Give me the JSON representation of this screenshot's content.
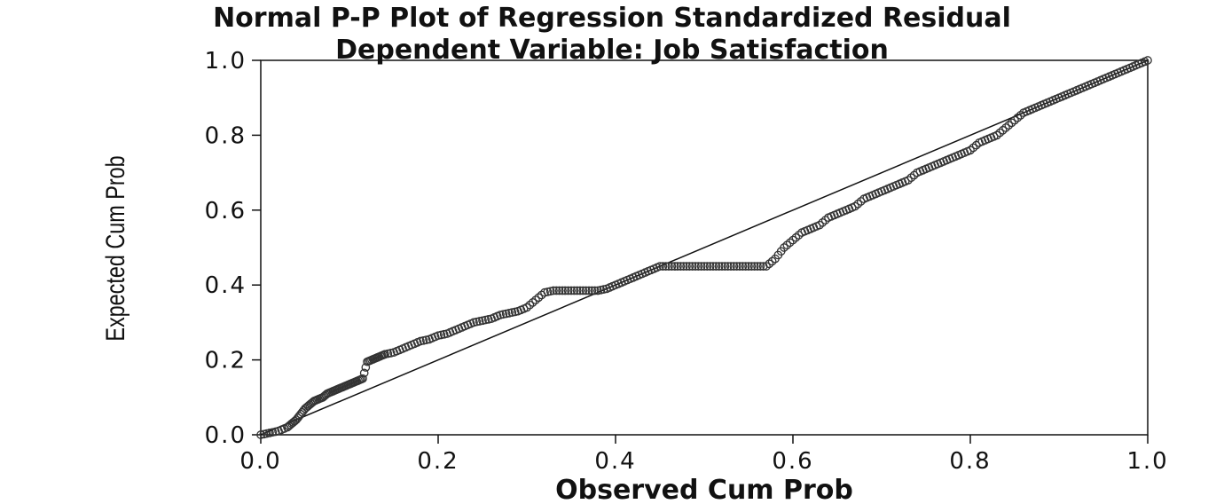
{
  "chart_data": {
    "type": "scatter",
    "title": "Normal P-P Plot of Regression Standardized Residual",
    "subtitle": "Dependent Variable: Job Satisfaction",
    "xlabel": "Observed Cum Prob",
    "ylabel": "Expected Cum Prob",
    "xlim": [
      0.0,
      1.0
    ],
    "ylim": [
      0.0,
      1.0
    ],
    "x_ticks": [
      "0.0",
      "0.2",
      "0.4",
      "0.6",
      "0.8",
      "1.0"
    ],
    "y_ticks": [
      "0.0",
      "0.2",
      "0.4",
      "0.6",
      "0.8",
      "1.0"
    ],
    "grid": false,
    "reference_line": {
      "from": [
        0.0,
        0.0
      ],
      "to": [
        1.0,
        1.0
      ]
    },
    "series": [
      {
        "points_x": [
          0.0,
          0.01,
          0.02,
          0.03,
          0.035,
          0.04,
          0.045,
          0.05,
          0.055,
          0.06,
          0.065,
          0.07,
          0.075,
          0.08,
          0.085,
          0.09,
          0.095,
          0.1,
          0.105,
          0.11,
          0.115,
          0.12,
          0.125,
          0.13,
          0.135,
          0.14,
          0.15,
          0.16,
          0.17,
          0.18,
          0.19,
          0.2,
          0.21,
          0.22,
          0.23,
          0.24,
          0.25,
          0.26,
          0.27,
          0.28,
          0.29,
          0.3,
          0.31,
          0.32,
          0.33,
          0.34,
          0.35,
          0.36,
          0.37,
          0.38,
          0.39,
          0.4,
          0.41,
          0.42,
          0.43,
          0.44,
          0.45,
          0.46,
          0.47,
          0.48,
          0.49,
          0.5,
          0.51,
          0.52,
          0.53,
          0.54,
          0.55,
          0.56,
          0.57,
          0.58,
          0.59,
          0.6,
          0.61,
          0.62,
          0.63,
          0.64,
          0.65,
          0.66,
          0.67,
          0.68,
          0.69,
          0.7,
          0.71,
          0.72,
          0.73,
          0.74,
          0.75,
          0.76,
          0.77,
          0.78,
          0.79,
          0.8,
          0.81,
          0.82,
          0.83,
          0.84,
          0.85,
          0.86,
          0.87,
          0.88,
          0.89,
          0.9,
          0.91,
          0.92,
          0.93,
          0.94,
          0.95,
          0.96,
          0.97,
          0.98,
          0.99,
          1.0
        ],
        "points_y": [
          0.0,
          0.005,
          0.01,
          0.02,
          0.03,
          0.04,
          0.055,
          0.07,
          0.08,
          0.09,
          0.095,
          0.1,
          0.11,
          0.115,
          0.12,
          0.125,
          0.13,
          0.135,
          0.14,
          0.145,
          0.15,
          0.195,
          0.2,
          0.205,
          0.21,
          0.215,
          0.22,
          0.23,
          0.24,
          0.25,
          0.255,
          0.265,
          0.27,
          0.28,
          0.29,
          0.3,
          0.305,
          0.31,
          0.32,
          0.325,
          0.33,
          0.34,
          0.36,
          0.38,
          0.385,
          0.385,
          0.385,
          0.385,
          0.385,
          0.385,
          0.39,
          0.4,
          0.41,
          0.42,
          0.43,
          0.44,
          0.45,
          0.45,
          0.45,
          0.45,
          0.45,
          0.45,
          0.45,
          0.45,
          0.45,
          0.45,
          0.45,
          0.45,
          0.45,
          0.47,
          0.5,
          0.52,
          0.54,
          0.55,
          0.56,
          0.58,
          0.59,
          0.6,
          0.61,
          0.63,
          0.64,
          0.65,
          0.66,
          0.67,
          0.68,
          0.7,
          0.71,
          0.72,
          0.73,
          0.74,
          0.75,
          0.76,
          0.78,
          0.79,
          0.8,
          0.82,
          0.84,
          0.86,
          0.87,
          0.88,
          0.89,
          0.9,
          0.91,
          0.92,
          0.93,
          0.94,
          0.95,
          0.96,
          0.97,
          0.98,
          0.99,
          1.0
        ]
      }
    ]
  }
}
